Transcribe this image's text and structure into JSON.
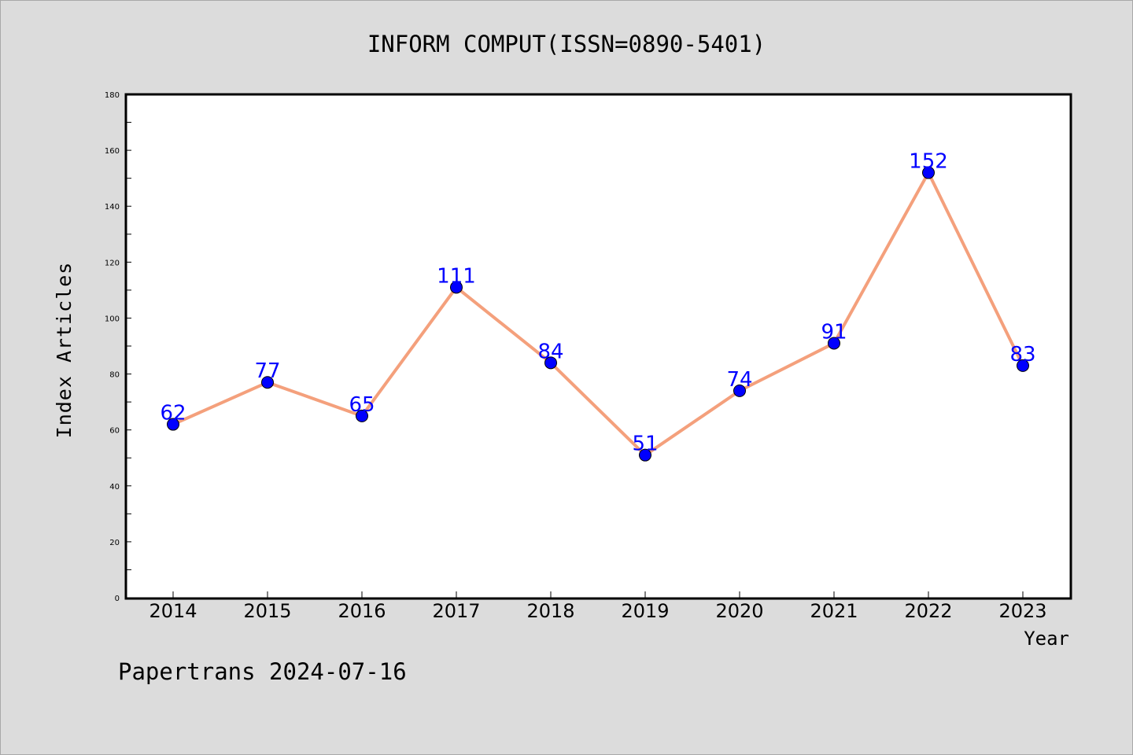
{
  "chart_data": {
    "type": "line",
    "title": "INFORM COMPUT(ISSN=0890-5401)",
    "xlabel": "Year",
    "ylabel": "Index Articles",
    "categories": [
      "2014",
      "2015",
      "2016",
      "2017",
      "2018",
      "2019",
      "2020",
      "2021",
      "2022",
      "2023"
    ],
    "values": [
      62,
      77,
      65,
      111,
      84,
      51,
      74,
      91,
      152,
      83
    ],
    "data_labels": [
      "62",
      "77",
      "65",
      "111",
      "84",
      "51",
      "74",
      "91",
      "152",
      "83"
    ],
    "ylim": [
      0,
      180
    ],
    "yticks": [
      0,
      20,
      40,
      60,
      80,
      100,
      120,
      140,
      160,
      180
    ],
    "ytick_labels": [
      "0",
      "20",
      "40",
      "60",
      "80",
      "100",
      "120",
      "140",
      "160",
      "180"
    ],
    "grid": false,
    "line_color": "#f4a07c",
    "marker_color": "#0000ff",
    "label_color": "#0000ff"
  },
  "footer": {
    "text": "Papertrans 2024-07-16"
  },
  "colors": {
    "background": "#dcdcdc",
    "plot_background": "#ffffff"
  }
}
